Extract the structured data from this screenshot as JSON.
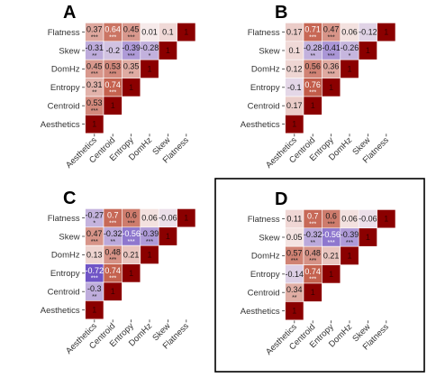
{
  "colors": {
    "strong_positive": "#8b0000",
    "positive": "#c4604d",
    "zero": "#f7ecec",
    "negative": "#6a4fc4",
    "panel_border": "#000000"
  },
  "chart_data": [
    {
      "type": "heatmap",
      "panel_label": "A",
      "highlighted": false,
      "variables": [
        "Aesthetics",
        "Centroid",
        "Entropy",
        "DomHz",
        "Skew",
        "Flatness"
      ],
      "diagonal_label": "1",
      "cells": [
        {
          "row": "Centroid",
          "col": "Aesthetics",
          "value": 0.53,
          "stars": "***"
        },
        {
          "row": "Entropy",
          "col": "Aesthetics",
          "value": 0.31,
          "stars": "**"
        },
        {
          "row": "Entropy",
          "col": "Centroid",
          "value": 0.74,
          "stars": "***"
        },
        {
          "row": "DomHz",
          "col": "Aesthetics",
          "value": 0.45,
          "stars": "***"
        },
        {
          "row": "DomHz",
          "col": "Centroid",
          "value": 0.53,
          "stars": "***"
        },
        {
          "row": "DomHz",
          "col": "Entropy",
          "value": 0.35,
          "stars": "**"
        },
        {
          "row": "Skew",
          "col": "Aesthetics",
          "value": -0.31,
          "stars": "**"
        },
        {
          "row": "Skew",
          "col": "Centroid",
          "value": -0.2,
          "stars": ""
        },
        {
          "row": "Skew",
          "col": "Entropy",
          "value": -0.39,
          "stars": "***"
        },
        {
          "row": "Skew",
          "col": "DomHz",
          "value": -0.28,
          "stars": "*"
        },
        {
          "row": "Flatness",
          "col": "Aesthetics",
          "value": 0.37,
          "stars": "***"
        },
        {
          "row": "Flatness",
          "col": "Centroid",
          "value": 0.64,
          "stars": "***"
        },
        {
          "row": "Flatness",
          "col": "Entropy",
          "value": 0.45,
          "stars": "***"
        },
        {
          "row": "Flatness",
          "col": "DomHz",
          "value": 0.01,
          "stars": ""
        },
        {
          "row": "Flatness",
          "col": "Skew",
          "value": 0.1,
          "stars": ""
        }
      ]
    },
    {
      "type": "heatmap",
      "panel_label": "B",
      "highlighted": false,
      "variables": [
        "Aesthetics",
        "Centroid",
        "Entropy",
        "DomHz",
        "Skew",
        "Flatness"
      ],
      "diagonal_label": "1",
      "cells": [
        {
          "row": "Centroid",
          "col": "Aesthetics",
          "value": 0.17,
          "stars": ""
        },
        {
          "row": "Entropy",
          "col": "Aesthetics",
          "value": -0.1,
          "stars": ""
        },
        {
          "row": "Entropy",
          "col": "Centroid",
          "value": 0.76,
          "stars": "***"
        },
        {
          "row": "DomHz",
          "col": "Aesthetics",
          "value": 0.12,
          "stars": ""
        },
        {
          "row": "DomHz",
          "col": "Centroid",
          "value": 0.56,
          "stars": "***"
        },
        {
          "row": "DomHz",
          "col": "Entropy",
          "value": 0.36,
          "stars": "***"
        },
        {
          "row": "Skew",
          "col": "Aesthetics",
          "value": 0.1,
          "stars": ""
        },
        {
          "row": "Skew",
          "col": "Centroid",
          "value": -0.28,
          "stars": "**"
        },
        {
          "row": "Skew",
          "col": "Entropy",
          "value": -0.41,
          "stars": "***"
        },
        {
          "row": "Skew",
          "col": "DomHz",
          "value": -0.26,
          "stars": "*"
        },
        {
          "row": "Flatness",
          "col": "Aesthetics",
          "value": 0.17,
          "stars": ""
        },
        {
          "row": "Flatness",
          "col": "Centroid",
          "value": 0.71,
          "stars": "***"
        },
        {
          "row": "Flatness",
          "col": "Entropy",
          "value": 0.47,
          "stars": "***"
        },
        {
          "row": "Flatness",
          "col": "DomHz",
          "value": 0.06,
          "stars": ""
        },
        {
          "row": "Flatness",
          "col": "Skew",
          "value": -0.12,
          "stars": ""
        }
      ]
    },
    {
      "type": "heatmap",
      "panel_label": "C",
      "highlighted": false,
      "variables": [
        "Aesthetics",
        "Centroid",
        "Entropy",
        "DomHz",
        "Skew",
        "Flatness"
      ],
      "diagonal_label": "1",
      "cells": [
        {
          "row": "Centroid",
          "col": "Aesthetics",
          "value": -0.3,
          "stars": "**"
        },
        {
          "row": "Entropy",
          "col": "Aesthetics",
          "value": -0.72,
          "stars": "***"
        },
        {
          "row": "Entropy",
          "col": "Centroid",
          "value": 0.74,
          "stars": "***"
        },
        {
          "row": "DomHz",
          "col": "Aesthetics",
          "value": 0.13,
          "stars": ""
        },
        {
          "row": "DomHz",
          "col": "Centroid",
          "value": 0.48,
          "stars": "***"
        },
        {
          "row": "DomHz",
          "col": "Entropy",
          "value": 0.21,
          "stars": ""
        },
        {
          "row": "Skew",
          "col": "Aesthetics",
          "value": 0.47,
          "stars": "***"
        },
        {
          "row": "Skew",
          "col": "Centroid",
          "value": -0.32,
          "stars": "**"
        },
        {
          "row": "Skew",
          "col": "Entropy",
          "value": -0.56,
          "stars": "***"
        },
        {
          "row": "Skew",
          "col": "DomHz",
          "value": -0.39,
          "stars": "***"
        },
        {
          "row": "Flatness",
          "col": "Aesthetics",
          "value": -0.27,
          "stars": "*"
        },
        {
          "row": "Flatness",
          "col": "Centroid",
          "value": 0.7,
          "stars": "***"
        },
        {
          "row": "Flatness",
          "col": "Entropy",
          "value": 0.6,
          "stars": "***"
        },
        {
          "row": "Flatness",
          "col": "DomHz",
          "value": 0.06,
          "stars": ""
        },
        {
          "row": "Flatness",
          "col": "Skew",
          "value": -0.06,
          "stars": ""
        }
      ]
    },
    {
      "type": "heatmap",
      "panel_label": "D",
      "highlighted": true,
      "variables": [
        "Aesthetics",
        "Centroid",
        "Entropy",
        "DomHz",
        "Skew",
        "Flatness"
      ],
      "diagonal_label": "1",
      "cells": [
        {
          "row": "Centroid",
          "col": "Aesthetics",
          "value": 0.34,
          "stars": "**"
        },
        {
          "row": "Entropy",
          "col": "Aesthetics",
          "value": -0.14,
          "stars": ""
        },
        {
          "row": "Entropy",
          "col": "Centroid",
          "value": 0.74,
          "stars": "***"
        },
        {
          "row": "DomHz",
          "col": "Aesthetics",
          "value": 0.57,
          "stars": "***"
        },
        {
          "row": "DomHz",
          "col": "Centroid",
          "value": 0.48,
          "stars": "***"
        },
        {
          "row": "DomHz",
          "col": "Entropy",
          "value": 0.21,
          "stars": ""
        },
        {
          "row": "Skew",
          "col": "Aesthetics",
          "value": 0.05,
          "stars": ""
        },
        {
          "row": "Skew",
          "col": "Centroid",
          "value": -0.32,
          "stars": "**"
        },
        {
          "row": "Skew",
          "col": "Entropy",
          "value": -0.56,
          "stars": "***"
        },
        {
          "row": "Skew",
          "col": "DomHz",
          "value": -0.39,
          "stars": "***"
        },
        {
          "row": "Flatness",
          "col": "Aesthetics",
          "value": 0.11,
          "stars": ""
        },
        {
          "row": "Flatness",
          "col": "Centroid",
          "value": 0.7,
          "stars": "***"
        },
        {
          "row": "Flatness",
          "col": "Entropy",
          "value": 0.6,
          "stars": "***"
        },
        {
          "row": "Flatness",
          "col": "DomHz",
          "value": 0.06,
          "stars": ""
        },
        {
          "row": "Flatness",
          "col": "Skew",
          "value": -0.06,
          "stars": ""
        }
      ]
    }
  ]
}
